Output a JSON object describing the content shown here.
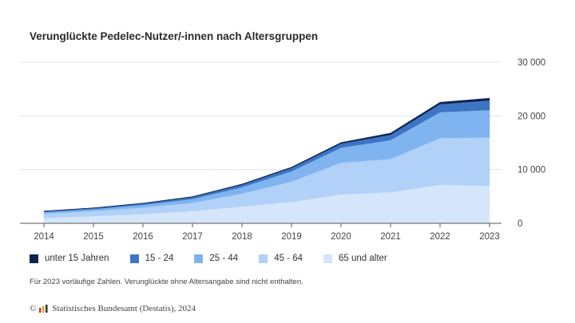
{
  "title": "Verunglückte Pedelec-Nutzer/-innen nach Altersgruppen",
  "note": "Für 2023 vorläufige Zahlen. Verunglückte ohne Altersangabe sind nicht enthalten.",
  "source": {
    "copyright": "©",
    "logo_icon": "destatis-logo-icon",
    "text": "Statistisches Bundesamt (Destatis), 2024"
  },
  "chart_data": {
    "type": "area",
    "stacked": true,
    "title": "Verunglückte Pedelec-Nutzer/-innen nach Altersgruppen",
    "x": [
      "2014",
      "2015",
      "2016",
      "2017",
      "2018",
      "2019",
      "2020",
      "2021",
      "2022",
      "2023"
    ],
    "y_ticks": [
      "0",
      "10 000",
      "20 000",
      "30 000"
    ],
    "ylim": [
      0,
      30000
    ],
    "y_axis_side": "right",
    "grid": true,
    "legend_position": "bottom",
    "series": [
      {
        "name": "65 und alter",
        "color": "#d5e6fb",
        "values": [
          1000,
          1350,
          1750,
          2300,
          3150,
          4000,
          5400,
          5800,
          7200,
          7000
        ]
      },
      {
        "name": "45 - 64",
        "color": "#b2d1f8",
        "values": [
          800,
          950,
          1200,
          1550,
          2400,
          3800,
          5900,
          6200,
          8700,
          9000
        ]
      },
      {
        "name": "25 - 44",
        "color": "#80b4f0",
        "values": [
          300,
          350,
          500,
          700,
          1200,
          1900,
          2800,
          3500,
          4800,
          5100
        ]
      },
      {
        "name": "15 - 24",
        "color": "#3e75c2",
        "values": [
          150,
          180,
          250,
          350,
          450,
          600,
          750,
          1000,
          1500,
          1800
        ]
      },
      {
        "name": "unter 15 Jahren",
        "color": "#0d2350",
        "values": [
          40,
          50,
          60,
          80,
          100,
          150,
          200,
          300,
          350,
          400
        ]
      }
    ],
    "legend": [
      "unter 15 Jahren",
      "15 - 24",
      "25 - 44",
      "45 - 64",
      "65 und alter"
    ]
  }
}
